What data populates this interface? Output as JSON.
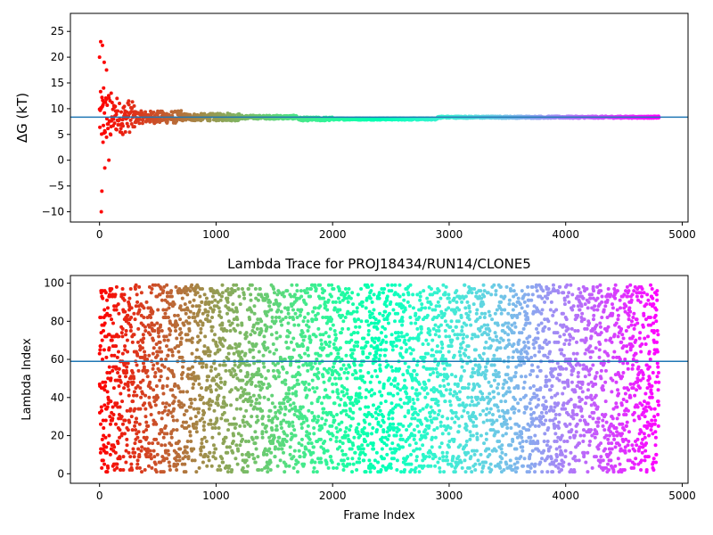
{
  "chart_data": [
    {
      "type": "scatter",
      "title": "",
      "xlabel": "",
      "ylabel": "ΔG (kT)",
      "xlim": [
        -250,
        5050
      ],
      "ylim": [
        -12,
        28.5
      ],
      "xticks": [
        0,
        1000,
        2000,
        3000,
        4000,
        5000
      ],
      "yticks": [
        -10,
        -5,
        0,
        5,
        10,
        15,
        20,
        25
      ],
      "hline": 8.35,
      "colormap": "rainbow (red → violet along the frame index)",
      "n_points": 4800,
      "series_samples": [
        {
          "x": 0,
          "y": 20.0
        },
        {
          "x": 10,
          "y": 23.0
        },
        {
          "x": 15,
          "y": -10.0
        },
        {
          "x": 20,
          "y": -6.0
        },
        {
          "x": 25,
          "y": 22.3
        },
        {
          "x": 30,
          "y": 3.5
        },
        {
          "x": 35,
          "y": 14.0
        },
        {
          "x": 40,
          "y": 19.0
        },
        {
          "x": 45,
          "y": -1.5
        },
        {
          "x": 60,
          "y": 17.5
        },
        {
          "x": 80,
          "y": 0.0
        },
        {
          "x": 100,
          "y": 13.0
        },
        {
          "x": 150,
          "y": 12.0
        },
        {
          "x": 200,
          "y": 5.0
        },
        {
          "x": 250,
          "y": 11.5
        },
        {
          "x": 300,
          "y": 6.5
        },
        {
          "x": 500,
          "y": 9.5
        },
        {
          "x": 700,
          "y": 9.6
        },
        {
          "x": 1000,
          "y": 8.2
        },
        {
          "x": 1100,
          "y": 9.1
        },
        {
          "x": 1500,
          "y": 8.6
        },
        {
          "x": 2000,
          "y": 8.0
        },
        {
          "x": 2500,
          "y": 8.1
        },
        {
          "x": 3000,
          "y": 8.2
        },
        {
          "x": 3500,
          "y": 8.3
        },
        {
          "x": 4000,
          "y": 8.3
        },
        {
          "x": 4500,
          "y": 8.3
        },
        {
          "x": 4800,
          "y": 8.3
        }
      ]
    },
    {
      "type": "scatter",
      "title": "Lambda Trace for PROJ18434/RUN14/CLONE5",
      "xlabel": "Frame Index",
      "ylabel": "Lambda Index",
      "xlim": [
        -250,
        5050
      ],
      "ylim": [
        -5,
        104
      ],
      "xticks": [
        0,
        1000,
        2000,
        3000,
        4000,
        5000
      ],
      "yticks": [
        0,
        20,
        40,
        60,
        80,
        100
      ],
      "hline": 59,
      "colormap": "rainbow (red → violet along the frame index)",
      "n_points": 4800,
      "lambda_range": [
        1,
        99
      ]
    }
  ]
}
